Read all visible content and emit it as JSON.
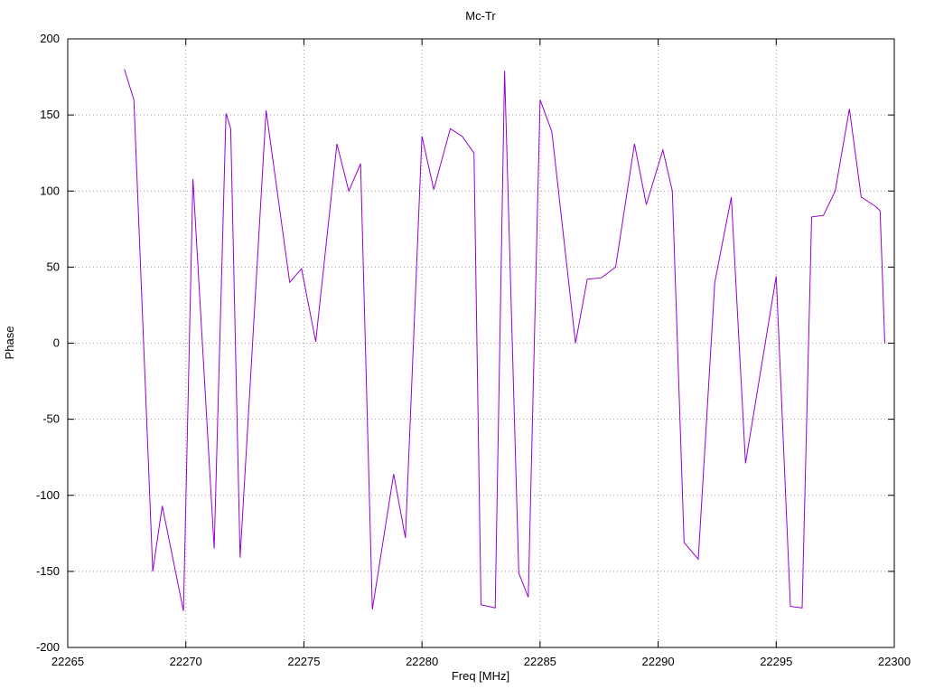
{
  "chart_data": {
    "type": "line",
    "title": "Mc-Tr",
    "xlabel": "Freq [MHz]",
    "ylabel": "Phase",
    "xlim": [
      22265,
      22300
    ],
    "ylim": [
      -200,
      200
    ],
    "x_ticks": [
      22265,
      22270,
      22275,
      22280,
      22285,
      22290,
      22295,
      22300
    ],
    "y_ticks": [
      -200,
      -150,
      -100,
      -50,
      0,
      50,
      100,
      150,
      200
    ],
    "grid": true,
    "legend": "none",
    "line_color": "#9400d3",
    "series": [
      {
        "name": "Phase",
        "points": [
          [
            22267.4,
            180
          ],
          [
            22267.8,
            160
          ],
          [
            22268.6,
            -150
          ],
          [
            22269.0,
            -107
          ],
          [
            22269.9,
            -176
          ],
          [
            22270.3,
            108
          ],
          [
            22271.2,
            -135
          ],
          [
            22271.7,
            151
          ],
          [
            22271.9,
            141
          ],
          [
            22272.3,
            -141
          ],
          [
            22273.4,
            153
          ],
          [
            22274.4,
            40
          ],
          [
            22274.9,
            49
          ],
          [
            22275.5,
            1
          ],
          [
            22276.4,
            131
          ],
          [
            22276.9,
            100
          ],
          [
            22277.4,
            118
          ],
          [
            22277.9,
            -175
          ],
          [
            22278.8,
            -86
          ],
          [
            22279.3,
            -128
          ],
          [
            22280.0,
            136
          ],
          [
            22280.5,
            101
          ],
          [
            22281.2,
            141
          ],
          [
            22281.7,
            136
          ],
          [
            22282.2,
            125
          ],
          [
            22282.5,
            -172
          ],
          [
            22283.1,
            -174
          ],
          [
            22283.5,
            179
          ],
          [
            22284.1,
            -151
          ],
          [
            22284.5,
            -167
          ],
          [
            22285.0,
            160
          ],
          [
            22285.5,
            139
          ],
          [
            22286.5,
            0
          ],
          [
            22287.0,
            42
          ],
          [
            22287.6,
            43
          ],
          [
            22288.2,
            50
          ],
          [
            22289.0,
            131
          ],
          [
            22289.5,
            91
          ],
          [
            22290.2,
            127
          ],
          [
            22290.6,
            100
          ],
          [
            22291.1,
            -131
          ],
          [
            22291.7,
            -142
          ],
          [
            22292.4,
            40
          ],
          [
            22293.1,
            96
          ],
          [
            22293.7,
            -79
          ],
          [
            22295.0,
            44
          ],
          [
            22295.6,
            -173
          ],
          [
            22296.1,
            -174
          ],
          [
            22296.5,
            83
          ],
          [
            22297.0,
            84
          ],
          [
            22297.5,
            100
          ],
          [
            22298.1,
            154
          ],
          [
            22298.6,
            96
          ],
          [
            22299.2,
            90
          ],
          [
            22299.4,
            87
          ],
          [
            22299.6,
            0
          ]
        ]
      }
    ]
  }
}
